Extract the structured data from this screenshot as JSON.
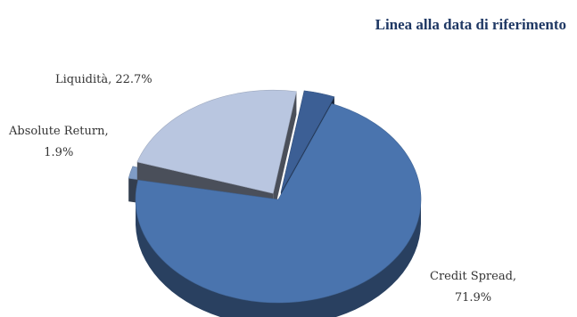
{
  "chart_data": {
    "type": "pie",
    "title": "Linea alla data di riferimento",
    "slices": [
      {
        "name": "Credit Spread",
        "value": 71.9,
        "color": "#4a74ae",
        "exploded": false,
        "label_line1": "Credit Spread,",
        "label_line2": "71.9%"
      },
      {
        "name": "Absolute Return",
        "value": 1.9,
        "color": "#7f9cc6",
        "exploded": true,
        "label_line1": "Absolute Return,",
        "label_line2": "1.9%"
      },
      {
        "name": "Liquidità",
        "value": 22.7,
        "color": "#b9c6e0",
        "exploded": true,
        "label_line1": "Liquidità, 22.7%",
        "label_line2": ""
      },
      {
        "name": "",
        "value": 3.5,
        "color": "#3c5f95",
        "exploded": true,
        "label_line1": "",
        "label_line2": ""
      }
    ]
  }
}
